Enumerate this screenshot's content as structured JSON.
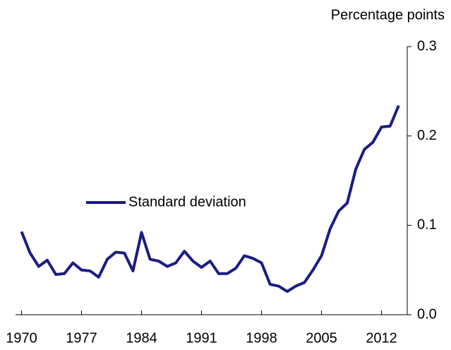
{
  "chart_data": {
    "type": "line",
    "y_label": "Percentage points",
    "x": [
      1970,
      1971,
      1972,
      1973,
      1974,
      1975,
      1976,
      1977,
      1978,
      1979,
      1980,
      1981,
      1982,
      1983,
      1984,
      1985,
      1986,
      1987,
      1988,
      1989,
      1990,
      1991,
      1992,
      1993,
      1994,
      1995,
      1996,
      1997,
      1998,
      1999,
      2000,
      2001,
      2002,
      2003,
      2004,
      2005,
      2006,
      2007,
      2008,
      2009,
      2010,
      2011,
      2012,
      2013,
      2014
    ],
    "series": [
      {
        "name": "Standard deviation",
        "color": "#1c1c84",
        "values": [
          0.093,
          0.069,
          0.054,
          0.061,
          0.045,
          0.046,
          0.058,
          0.05,
          0.049,
          0.042,
          0.062,
          0.07,
          0.069,
          0.049,
          0.092,
          0.062,
          0.06,
          0.054,
          0.058,
          0.071,
          0.06,
          0.053,
          0.06,
          0.046,
          0.046,
          0.052,
          0.066,
          0.063,
          0.058,
          0.034,
          0.032,
          0.026,
          0.032,
          0.036,
          0.05,
          0.066,
          0.096,
          0.116,
          0.125,
          0.163,
          0.185,
          0.193,
          0.21,
          0.211,
          0.234
        ]
      }
    ],
    "xlim": [
      1969.3,
      2015
    ],
    "xticks": [
      1970,
      1977,
      1984,
      1991,
      1998,
      2005,
      2012
    ],
    "ylim": [
      0,
      0.3
    ],
    "yticks": [
      {
        "value": 0,
        "label": "0.0"
      },
      0.1,
      0.2,
      0.3
    ],
    "y_axis_side": "right",
    "legend": "center-left"
  }
}
